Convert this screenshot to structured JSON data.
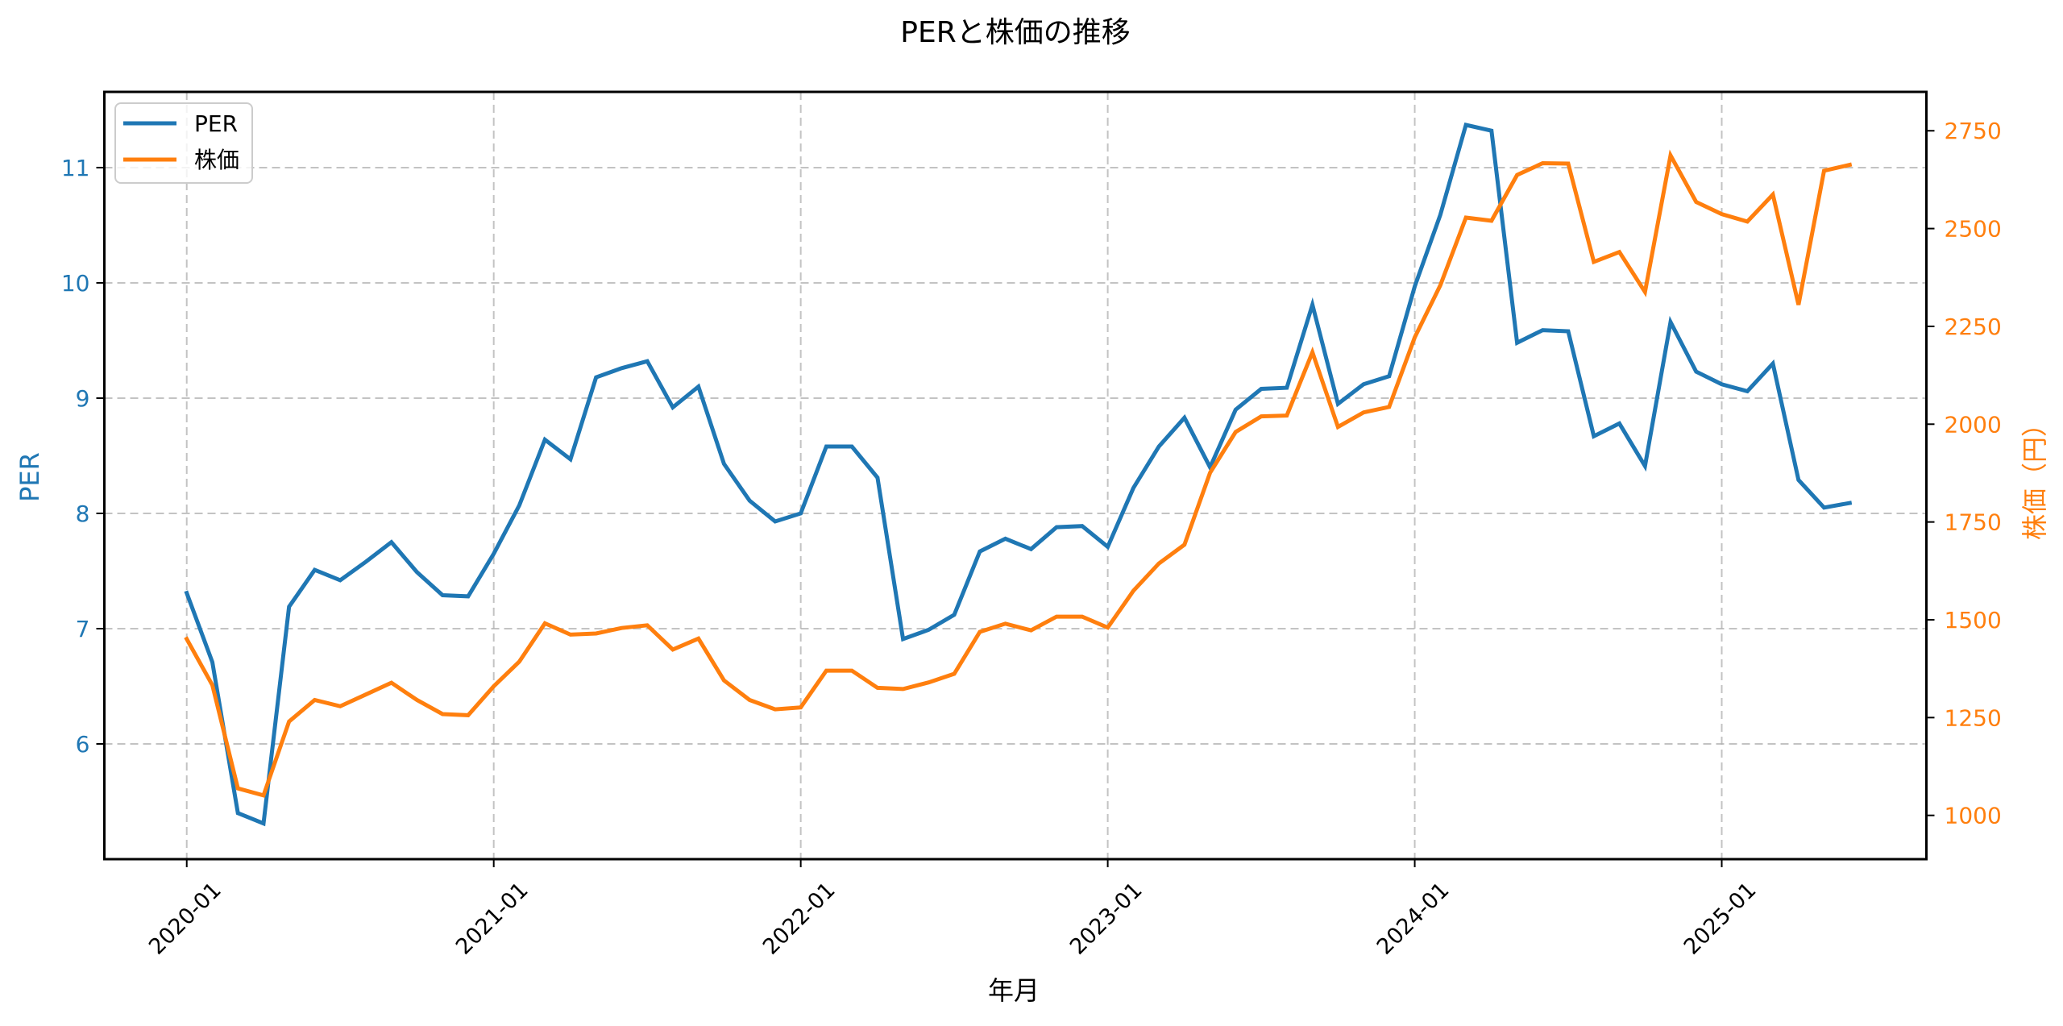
{
  "chart_data": {
    "type": "line",
    "title": "PERと株価の推移",
    "xlabel": "年月",
    "ylabel": "PER",
    "ylabel_right": "株価（円）",
    "x": [
      "2020-01",
      "2020-02",
      "2020-03",
      "2020-04",
      "2020-05",
      "2020-06",
      "2020-07",
      "2020-08",
      "2020-09",
      "2020-10",
      "2020-11",
      "2020-12",
      "2021-01",
      "2021-02",
      "2021-03",
      "2021-04",
      "2021-05",
      "2021-06",
      "2021-07",
      "2021-08",
      "2021-09",
      "2021-10",
      "2021-11",
      "2021-12",
      "2022-01",
      "2022-02",
      "2022-03",
      "2022-04",
      "2022-05",
      "2022-06",
      "2022-07",
      "2022-08",
      "2022-09",
      "2022-10",
      "2022-11",
      "2022-12",
      "2023-01",
      "2023-02",
      "2023-03",
      "2023-04",
      "2023-05",
      "2023-06",
      "2023-07",
      "2023-08",
      "2023-09",
      "2023-10",
      "2023-11",
      "2023-12",
      "2024-01",
      "2024-02",
      "2024-03",
      "2024-04",
      "2024-05",
      "2024-06",
      "2024-07",
      "2024-08",
      "2024-09",
      "2024-10",
      "2024-11",
      "2024-12",
      "2025-01",
      "2025-02",
      "2025-03",
      "2025-04",
      "2025-05",
      "2025-06"
    ],
    "xtick_labels": [
      "2020-01",
      "2021-01",
      "2022-01",
      "2023-01",
      "2024-01",
      "2025-01"
    ],
    "xtick_index": [
      0,
      12,
      24,
      36,
      48,
      60
    ],
    "xlim_index": [
      -3.22,
      68.0
    ],
    "series": [
      {
        "name": "PER",
        "axis": "left",
        "color": "#1f77b4",
        "values": [
          7.31,
          6.71,
          5.4,
          5.31,
          7.19,
          7.51,
          7.42,
          7.58,
          7.75,
          7.49,
          7.29,
          7.28,
          7.65,
          8.07,
          8.64,
          8.47,
          9.18,
          9.26,
          9.32,
          8.92,
          9.1,
          8.43,
          8.11,
          7.93,
          8.0,
          8.58,
          8.58,
          8.31,
          6.91,
          6.99,
          7.12,
          7.67,
          7.78,
          7.69,
          7.88,
          7.89,
          7.71,
          8.22,
          8.58,
          8.83,
          8.4,
          8.9,
          9.08,
          9.09,
          9.81,
          8.95,
          9.12,
          9.19,
          9.97,
          10.59,
          11.37,
          11.32,
          9.48,
          9.59,
          9.58,
          8.67,
          8.78,
          8.41,
          9.66,
          9.23,
          9.12,
          9.06,
          9.3,
          8.29,
          8.05,
          8.09
        ]
      },
      {
        "name": "株価",
        "axis": "right",
        "color": "#ff7f0e",
        "values": [
          1451,
          1333,
          1069,
          1051,
          1240,
          1295,
          1279,
          1309,
          1339,
          1295,
          1259,
          1256,
          1330,
          1393,
          1491,
          1462,
          1465,
          1479,
          1486,
          1424,
          1452,
          1345,
          1295,
          1271,
          1276,
          1370,
          1370,
          1326,
          1323,
          1340,
          1362,
          1469,
          1490,
          1473,
          1508,
          1508,
          1480,
          1574,
          1644,
          1692,
          1876,
          1980,
          2020,
          2022,
          2184,
          1993,
          2030,
          2044,
          2222,
          2355,
          2528,
          2520,
          2637,
          2667,
          2666,
          2415,
          2440,
          2338,
          2687,
          2568,
          2537,
          2518,
          2587,
          2305,
          2648,
          2663
        ]
      }
    ],
    "ylim": [
      5.0,
      11.657
    ],
    "yticks": [
      6,
      7,
      8,
      9,
      10,
      11
    ],
    "ylim_right": [
      888.1,
      2849.4
    ],
    "yticks_right": [
      1000,
      1250,
      1500,
      1750,
      2000,
      2250,
      2500,
      2750
    ],
    "grid": true,
    "legend": {
      "position": "upper left",
      "entries": [
        "PER",
        "株価"
      ]
    }
  }
}
